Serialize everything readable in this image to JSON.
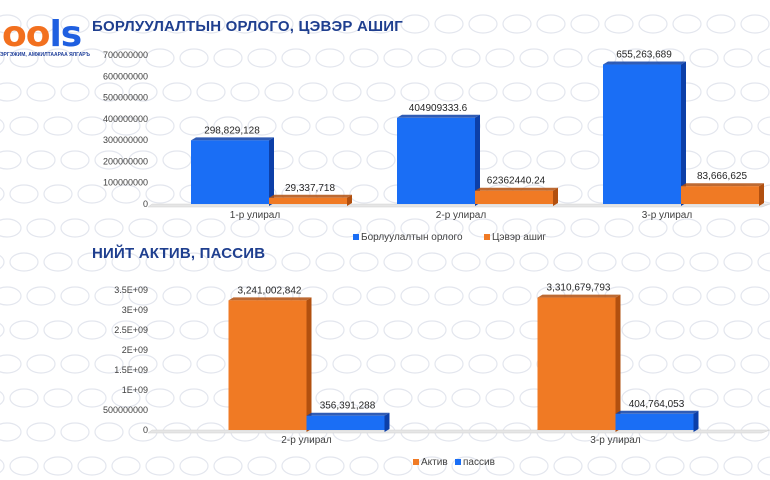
{
  "colors": {
    "blue": "#1a6ef5",
    "blue_dark": "#0c3fa8",
    "orange": "#f07a24",
    "orange_dark": "#b2500f",
    "title": "#1f3f8f",
    "pattern": "#e3e6ee"
  },
  "logo": {
    "text_left": "oo",
    "text_right": "ls",
    "tagline": "ЭРГЭЖИМ, АМЖИЛТААРАА ЯЛГАРЪЯ"
  },
  "sections": [
    {
      "title": "БОРЛУУЛАЛТЫН ОРЛОГО, ЦЭВЭР АШИГ"
    },
    {
      "title": "НИЙТ АКТИВ, ПАССИВ"
    }
  ],
  "chart_data": [
    {
      "type": "bar",
      "title": "БОРЛУУЛАЛТЫН ОРЛОГО, ЦЭВЭР АШИГ",
      "categories": [
        "1-р улирал",
        "2-р улирал",
        "3-р улирал"
      ],
      "series": [
        {
          "name": "Борлуулалтын орлого",
          "values": [
            298829128,
            404909333.6,
            655263689
          ],
          "labels": [
            "298,829,128",
            "404909333.6",
            "655,263,689"
          ],
          "color": "#1a6ef5"
        },
        {
          "name": "Цэвэр ашиг",
          "values": [
            29337718,
            62362440.24,
            83666625
          ],
          "labels": [
            "29,337,718",
            "62362440.24",
            "83,666,625"
          ],
          "color": "#f07a24"
        }
      ],
      "yticks": [
        "0",
        "100000000",
        "200000000",
        "300000000",
        "400000000",
        "500000000",
        "600000000",
        "700000000"
      ],
      "ylim": [
        0,
        700000000
      ],
      "grid": false,
      "legend": "bottom"
    },
    {
      "type": "bar",
      "title": "НИЙТ АКТИВ, ПАССИВ",
      "categories": [
        "2-р улирал",
        "3-р улирал"
      ],
      "series": [
        {
          "name": "Актив",
          "values": [
            3241002842,
            3310679793
          ],
          "labels": [
            "3,241,002,842",
            "3,310,679,793"
          ],
          "color": "#f07a24"
        },
        {
          "name": "пассив",
          "values": [
            356391288,
            404764053
          ],
          "labels": [
            "356,391,288",
            "404,764,053"
          ],
          "color": "#1a6ef5"
        }
      ],
      "yticks": [
        "0",
        "500000000",
        "1E+09",
        "1.5E+09",
        "2E+09",
        "2.5E+09",
        "3E+09",
        "3.5E+09"
      ],
      "ylim": [
        0,
        3500000000
      ],
      "grid": false,
      "legend": "bottom"
    }
  ]
}
